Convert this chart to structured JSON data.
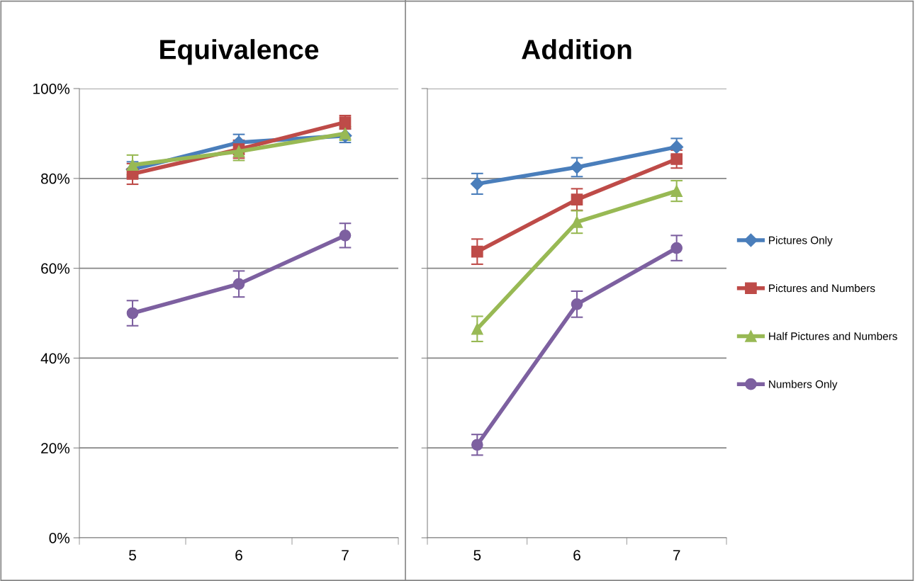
{
  "chart_data": [
    {
      "type": "line",
      "title": "Equivalence",
      "categories": [
        "5",
        "6",
        "7"
      ],
      "ylim": [
        0,
        100
      ],
      "yticks": [
        {
          "value": 0,
          "label": "0%"
        },
        {
          "value": 20,
          "label": "20%"
        },
        {
          "value": 40,
          "label": "40%"
        },
        {
          "value": 60,
          "label": "60%"
        },
        {
          "value": 80,
          "label": "80%"
        },
        {
          "value": 100,
          "label": "100%"
        }
      ],
      "grid": "y",
      "legend": false,
      "series": [
        {
          "color": "#4a7ebb",
          "marker": "diamond",
          "values": [
            82,
            88,
            89.5
          ],
          "errors": [
            1.7,
            1.8,
            1.5
          ]
        },
        {
          "color": "#be4b48",
          "marker": "square",
          "values": [
            81,
            86.5,
            92.5
          ],
          "errors": [
            2.3,
            2,
            1.5
          ]
        },
        {
          "color": "#98b954",
          "marker": "triangle",
          "values": [
            83,
            86,
            90
          ],
          "errors": [
            2.2,
            2,
            1.5
          ]
        },
        {
          "color": "#7d60a0",
          "marker": "circle",
          "values": [
            50,
            56.5,
            67.3
          ],
          "errors": [
            2.8,
            2.9,
            2.7
          ]
        }
      ]
    },
    {
      "type": "line",
      "title": "Addition",
      "categories": [
        "5",
        "6",
        "7"
      ],
      "ylim": [
        0,
        100
      ],
      "yticks": [
        {
          "value": 0,
          "label": null
        },
        {
          "value": 20,
          "label": null
        },
        {
          "value": 40,
          "label": null
        },
        {
          "value": 60,
          "label": null
        },
        {
          "value": 80,
          "label": null
        },
        {
          "value": 100,
          "label": null
        }
      ],
      "tick_labels": "x",
      "grid": "y",
      "legend": "right",
      "series": [
        {
          "name": "Pictures Only",
          "color": "#4a7ebb",
          "marker": "diamond",
          "values": [
            78.8,
            82.5,
            87
          ],
          "errors": [
            2.3,
            2.1,
            1.9
          ]
        },
        {
          "name": "Pictures and Numbers",
          "color": "#be4b48",
          "marker": "square",
          "values": [
            63.7,
            75.3,
            84.3
          ],
          "errors": [
            2.8,
            2.4,
            2
          ]
        },
        {
          "name": "Half Pictures and Numbers",
          "color": "#98b954",
          "marker": "triangle",
          "values": [
            46.5,
            70.3,
            77.2
          ],
          "errors": [
            2.8,
            2.5,
            2.3
          ]
        },
        {
          "name": "Numbers Only",
          "color": "#7d60a0",
          "marker": "circle",
          "values": [
            20.7,
            52,
            64.5
          ],
          "errors": [
            2.3,
            2.9,
            2.8
          ]
        }
      ]
    }
  ]
}
